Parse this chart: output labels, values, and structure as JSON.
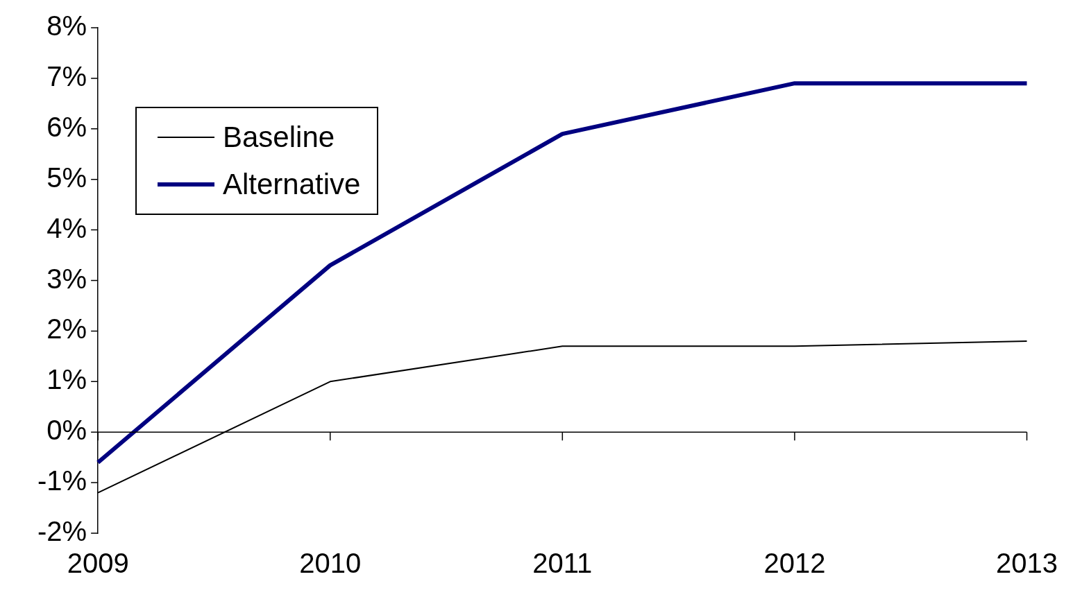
{
  "chart_data": {
    "type": "line",
    "categories": [
      "2009",
      "2010",
      "2011",
      "2012",
      "2013"
    ],
    "series": [
      {
        "name": "Baseline",
        "color": "#000000",
        "values": [
          -1.2,
          1.0,
          1.7,
          1.7,
          1.8
        ]
      },
      {
        "name": "Alternative",
        "color": "#000080",
        "values": [
          -0.6,
          3.3,
          5.9,
          6.9,
          6.9
        ]
      }
    ],
    "ylim": [
      -2,
      8
    ],
    "yticks": [
      {
        "value": -2,
        "label": "-2%"
      },
      {
        "value": -1,
        "label": "-1%"
      },
      {
        "value": 0,
        "label": "0%"
      },
      {
        "value": 1,
        "label": "1%"
      },
      {
        "value": 2,
        "label": "2%"
      },
      {
        "value": 3,
        "label": "3%"
      },
      {
        "value": 4,
        "label": "4%"
      },
      {
        "value": 5,
        "label": "5%"
      },
      {
        "value": 6,
        "label": "6%"
      },
      {
        "value": 7,
        "label": "7%"
      },
      {
        "value": 8,
        "label": "8%"
      }
    ],
    "ref_lines": [
      {
        "axis": "y",
        "value": 0,
        "color": "#000000",
        "line_style": "solid"
      }
    ],
    "grid": false,
    "legend": "top left",
    "marker": "none",
    "line_style": "solid"
  }
}
